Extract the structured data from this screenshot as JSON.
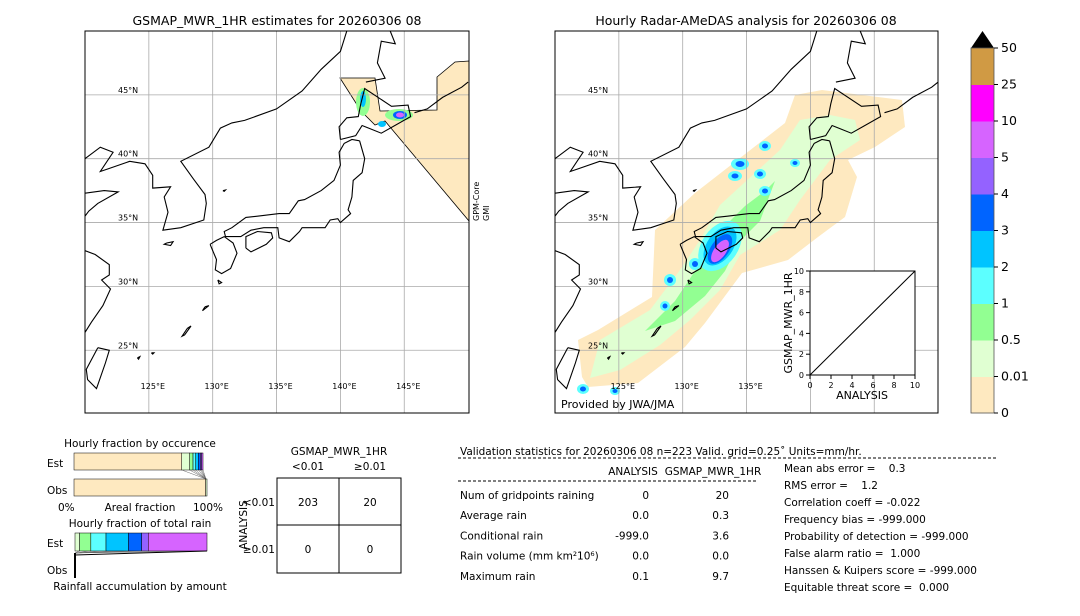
{
  "left_map": {
    "title": "GSMAP_MWR_1HR estimates for 20260306 08",
    "side_label_1": "GPM-Core",
    "side_label_2": "GMI",
    "lat_labels": [
      "45°N",
      "40°N",
      "35°N",
      "30°N",
      "25°N"
    ],
    "lon_labels": [
      "125°E",
      "130°E",
      "135°E",
      "140°E",
      "145°E"
    ]
  },
  "right_map": {
    "title": "Hourly Radar-AMeDAS analysis for 20260306 08",
    "credit": "Provided by JWA/JMA",
    "lat_labels": [
      "45°N",
      "40°N",
      "35°N",
      "30°N",
      "25°N"
    ],
    "lon_labels": [
      "125°E",
      "130°E",
      "135°E"
    ]
  },
  "colorbar": {
    "ticks": [
      "0",
      "0.01",
      "0.5",
      "1",
      "2",
      "3",
      "4",
      "5",
      "10",
      "25",
      "50"
    ],
    "colors": [
      "#fee9c0",
      "#e0ffd2",
      "#92ff92",
      "#5cffff",
      "#00c4ff",
      "#0064ff",
      "#9462ff",
      "#d664ff",
      "#ff00ff",
      "#d09a44"
    ],
    "extend_color": "#000000"
  },
  "chart_data": [
    {
      "type": "scatter",
      "xlabel": "ANALYSIS",
      "ylabel": "GSMAP_MWR_1HR",
      "xlim": [
        0,
        10
      ],
      "ylim": [
        0,
        10
      ],
      "ticks": [
        "0",
        "2",
        "4",
        "6",
        "8",
        "10"
      ],
      "diagonal": true,
      "points": []
    },
    {
      "type": "bar",
      "title": "Hourly fraction by occurence",
      "xlabel": "Areal fraction",
      "x_tick_left": "0%",
      "x_tick_right": "100%",
      "categories": [
        "Est",
        "Obs"
      ],
      "segment_colors": [
        "#fee9c0",
        "#e0ffd2",
        "#92ff92",
        "#5cffff",
        "#00c4ff",
        "#0064ff",
        "#9462ff",
        "#d664ff"
      ],
      "series": [
        {
          "category": "Est",
          "fractions": [
            0.81,
            0.06,
            0.025,
            0.02,
            0.02,
            0.015,
            0.01,
            0.01
          ]
        },
        {
          "category": "Obs",
          "fractions": [
            0.99,
            0.01,
            0,
            0,
            0,
            0,
            0,
            0
          ]
        }
      ]
    },
    {
      "type": "bar",
      "title": "Hourly fraction of total rain",
      "xlabel": "Rainfall accumulation by amount",
      "categories": [
        "Est",
        "Obs"
      ],
      "segment_colors": [
        "#e0ffd2",
        "#92ff92",
        "#5cffff",
        "#00c4ff",
        "#0064ff",
        "#9462ff",
        "#d664ff"
      ],
      "series": [
        {
          "category": "Est",
          "fractions": [
            0.035,
            0.085,
            0.115,
            0.17,
            0.1,
            0.05,
            0.445
          ]
        },
        {
          "category": "Obs",
          "fractions": [
            0,
            0,
            0,
            0,
            0,
            0,
            0
          ]
        }
      ]
    }
  ],
  "contingency": {
    "col_title": "GSMAP_MWR_1HR",
    "col_headers": [
      "<0.01",
      "≥0.01"
    ],
    "row_title": "ANALYSIS",
    "row_headers": [
      "<0.01",
      "≥0.01"
    ],
    "cells": [
      [
        "203",
        "20"
      ],
      [
        "0",
        "0"
      ]
    ]
  },
  "stats": {
    "header": "Validation statistics for 20260306 08  n=223 Valid. grid=0.25˚ Units=mm/hr.",
    "col_analysis": "ANALYSIS",
    "col_gsmap": "GSMAP_MWR_1HR",
    "rows": [
      {
        "label": "Num of gridpoints raining",
        "analysis": "0",
        "gsmap": "20"
      },
      {
        "label": "Average rain",
        "analysis": "0.0",
        "gsmap": "0.3"
      },
      {
        "label": "Conditional rain",
        "analysis": "-999.0",
        "gsmap": "3.6"
      },
      {
        "label": "Rain volume (mm km²10⁶)",
        "analysis": "0.0",
        "gsmap": "0.0"
      },
      {
        "label": "Maximum rain",
        "analysis": "0.1",
        "gsmap": "9.7"
      }
    ],
    "scores": [
      "Mean abs error =    0.3",
      "RMS error =    1.2",
      "Correlation coeff = -0.022",
      "Frequency bias = -999.000",
      "Probability of detection = -999.000",
      "False alarm ratio =  1.000",
      "Hanssen & Kuipers score = -999.000",
      "Equitable threat score =  0.000"
    ]
  }
}
